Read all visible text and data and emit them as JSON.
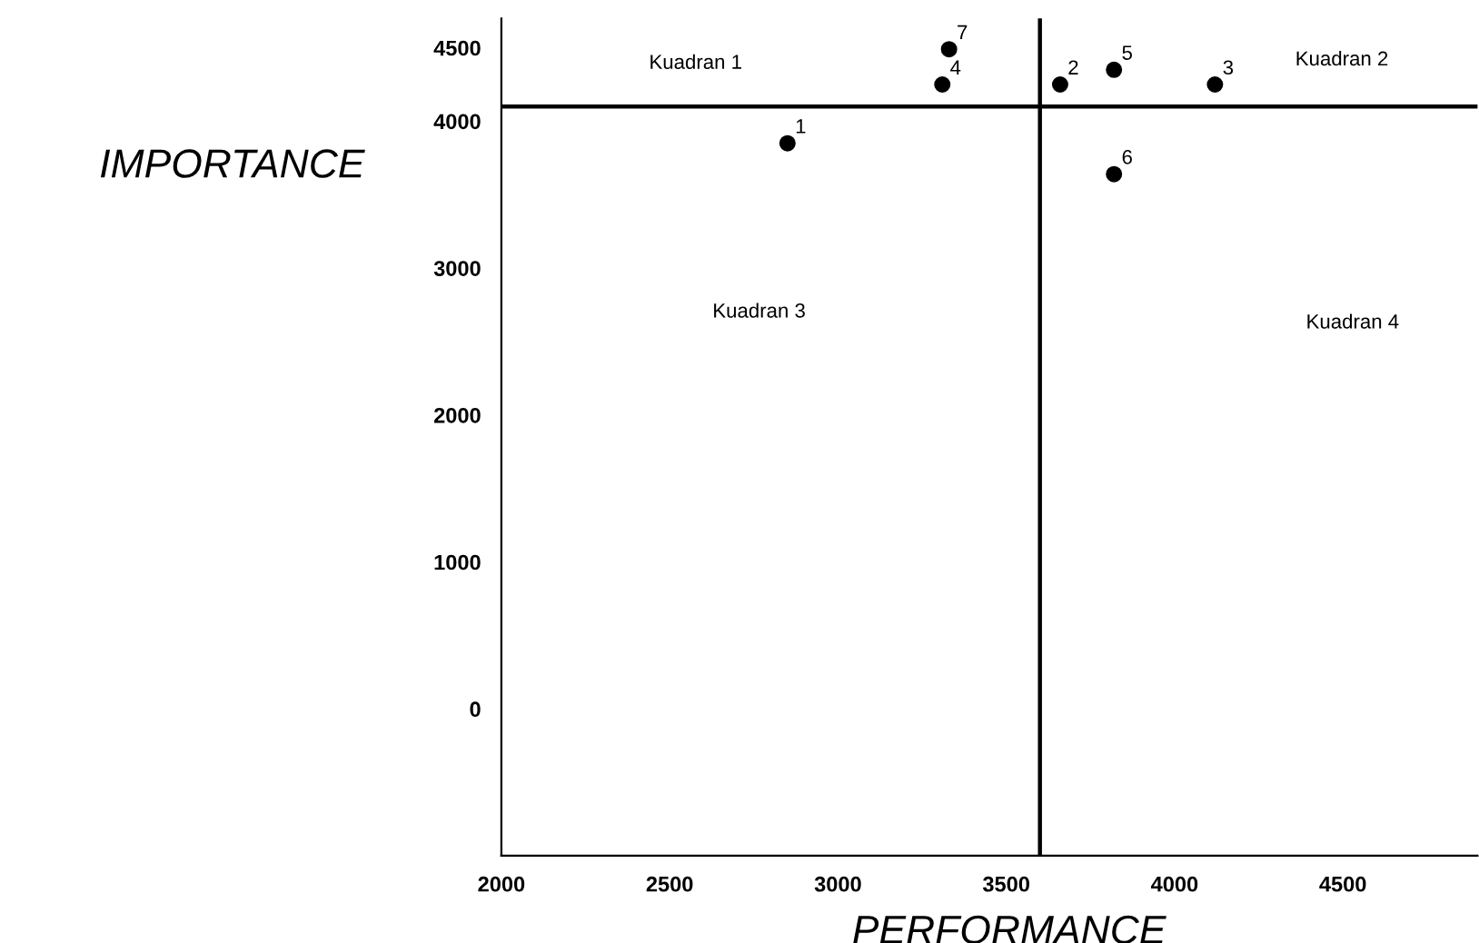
{
  "chart_data": {
    "type": "scatter",
    "xlabel": "PERFORMANCE",
    "ylabel": "IMPORTANCE",
    "x": [
      2850,
      3660,
      4120,
      3310,
      3820,
      3820,
      3330
    ],
    "values": [
      3850,
      4250,
      4250,
      4250,
      4350,
      3640,
      4490
    ],
    "color": "#000000",
    "marker": "circle",
    "xlim": [
      2000,
      4900
    ],
    "ylim": [
      -1000,
      4700
    ],
    "xticks": [
      2000,
      2500,
      3000,
      3500,
      4000,
      4500
    ],
    "yticks": [
      0,
      1000,
      2000,
      3000,
      4000,
      4500
    ],
    "grid": false,
    "legend": false,
    "ref_lines": [
      {
        "axis": "x",
        "value": 3600,
        "color": "#000000"
      },
      {
        "axis": "y",
        "value": 4100,
        "color": "#000000"
      }
    ],
    "annotations": [
      {
        "text": "1",
        "x": 2850,
        "y": 3850
      },
      {
        "text": "2",
        "x": 3660,
        "y": 4250
      },
      {
        "text": "3",
        "x": 4120,
        "y": 4250
      },
      {
        "text": "4",
        "x": 3310,
        "y": 4250
      },
      {
        "text": "5",
        "x": 3820,
        "y": 4350
      },
      {
        "text": "6",
        "x": 3820,
        "y": 3640
      },
      {
        "text": "7",
        "x": 3330,
        "y": 4490
      },
      "Kuadran 1",
      "Kuadran 2",
      "Kuadran 3",
      "Kuadran 4"
    ]
  }
}
